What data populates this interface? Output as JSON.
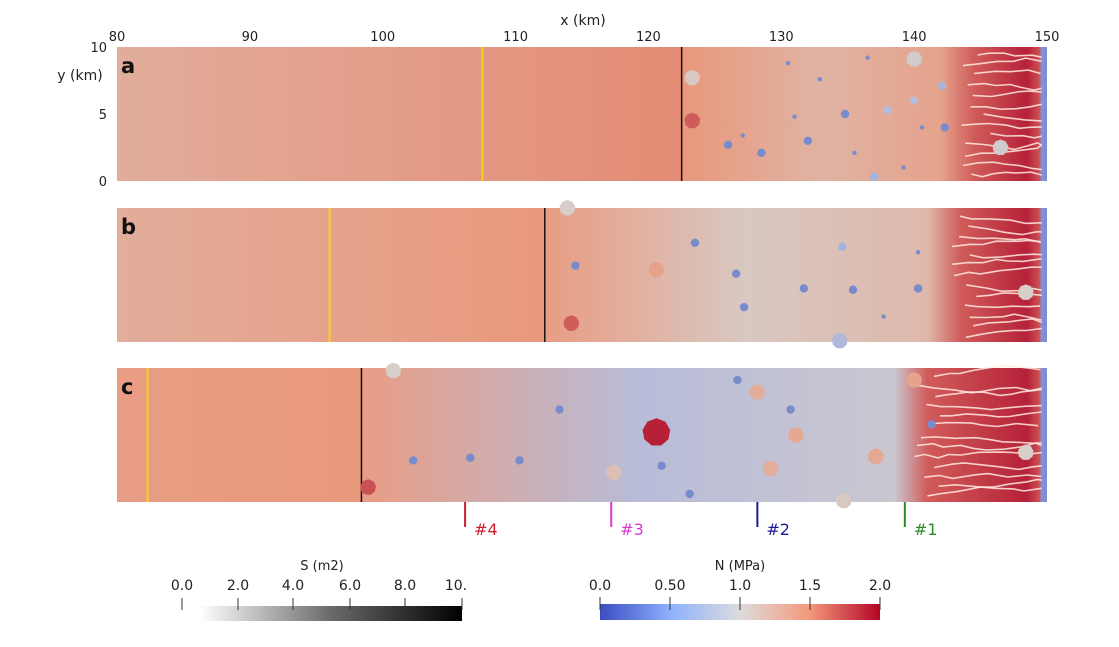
{
  "chart_data": {
    "type": "heatmap",
    "title": "",
    "xlabel": "x (km)",
    "ylabel": "y (km)",
    "xlim": [
      80,
      150
    ],
    "ylim": [
      0,
      10
    ],
    "x_ticks": [
      80,
      90,
      100,
      110,
      120,
      130,
      140,
      150
    ],
    "y_ticks": [
      0,
      5,
      10
    ],
    "grid": false,
    "panels": [
      {
        "label": "a",
        "yellow_front_x": 107.5,
        "black_front_x": 122.5,
        "dense_channel_start_x": 143.5,
        "N_far_left": 1.3,
        "N_behind_front": 1.55,
        "N_mid": 1.25,
        "N_right": 2.0,
        "moulins": [
          {
            "x": 123.3,
            "y": 7.7,
            "S": 0,
            "N": 1.05,
            "size": "large"
          },
          {
            "x": 123.3,
            "y": 4.5,
            "S": 0,
            "N": 1.75,
            "size": "large"
          },
          {
            "x": 126.0,
            "y": 2.7,
            "N": 0.45,
            "size": "medium"
          },
          {
            "x": 127.1,
            "y": 3.4,
            "N": 0.35,
            "size": "small"
          },
          {
            "x": 128.5,
            "y": 2.1,
            "N": 0.4,
            "size": "medium"
          },
          {
            "x": 130.5,
            "y": 8.8,
            "N": 0.45,
            "size": "small"
          },
          {
            "x": 131.0,
            "y": 4.8,
            "N": 0.35,
            "size": "small"
          },
          {
            "x": 132.0,
            "y": 3.0,
            "N": 0.55,
            "size": "medium"
          },
          {
            "x": 132.9,
            "y": 7.6,
            "N": 0.35,
            "size": "small"
          },
          {
            "x": 134.8,
            "y": 5.0,
            "N": 0.4,
            "size": "medium"
          },
          {
            "x": 135.5,
            "y": 2.1,
            "N": 0.45,
            "size": "small"
          },
          {
            "x": 136.5,
            "y": 9.2,
            "N": 0.45,
            "size": "small"
          },
          {
            "x": 137.0,
            "y": 0.3,
            "N": 0.6,
            "size": "medium"
          },
          {
            "x": 138.0,
            "y": 5.3,
            "N": 0.75,
            "size": "medium"
          },
          {
            "x": 139.2,
            "y": 1.0,
            "N": 0.45,
            "size": "small"
          },
          {
            "x": 140.6,
            "y": 4.0,
            "N": 0.45,
            "size": "small"
          },
          {
            "x": 140.0,
            "y": 9.1,
            "N": 0.95,
            "size": "large"
          },
          {
            "x": 140.0,
            "y": 6.0,
            "N": 0.75,
            "size": "medium"
          },
          {
            "x": 142.3,
            "y": 4.0,
            "N": 0.5,
            "size": "medium"
          },
          {
            "x": 142.1,
            "y": 7.1,
            "N": 0.65,
            "size": "medium"
          },
          {
            "x": 146.5,
            "y": 2.5,
            "S": 0,
            "N": 0.95,
            "size": "large"
          }
        ]
      },
      {
        "label": "b",
        "yellow_front_x": 96.0,
        "black_front_x": 112.2,
        "dense_channel_start_x": 142.5,
        "N_far_left": 1.3,
        "N_behind_front": 1.5,
        "N_mid": 1.05,
        "N_right": 2.0,
        "moulins": [
          {
            "x": 113.9,
            "y": 10.0,
            "S": 0,
            "N": 1.0,
            "size": "large"
          },
          {
            "x": 114.2,
            "y": 1.4,
            "S": 0,
            "N": 1.75,
            "size": "large"
          },
          {
            "x": 114.5,
            "y": 5.7,
            "N": 0.5,
            "size": "medium"
          },
          {
            "x": 120.6,
            "y": 5.4,
            "N": 1.4,
            "size": "large"
          },
          {
            "x": 123.5,
            "y": 7.4,
            "N": 0.5,
            "size": "medium"
          },
          {
            "x": 126.6,
            "y": 5.1,
            "N": 0.5,
            "size": "medium"
          },
          {
            "x": 127.2,
            "y": 2.6,
            "N": 0.5,
            "size": "medium"
          },
          {
            "x": 131.7,
            "y": 4.0,
            "N": 0.5,
            "size": "medium"
          },
          {
            "x": 134.6,
            "y": 7.1,
            "N": 0.6,
            "size": "medium"
          },
          {
            "x": 135.4,
            "y": 3.9,
            "N": 0.45,
            "size": "medium"
          },
          {
            "x": 137.7,
            "y": 1.9,
            "N": 0.45,
            "size": "small"
          },
          {
            "x": 140.3,
            "y": 6.7,
            "N": 0.45,
            "size": "small"
          },
          {
            "x": 140.3,
            "y": 4.0,
            "N": 0.45,
            "size": "medium"
          },
          {
            "x": 134.4,
            "y": 0.1,
            "N": 0.7,
            "size": "large"
          },
          {
            "x": 148.4,
            "y": 3.7,
            "S": 0,
            "N": 1.0,
            "size": "large"
          }
        ]
      },
      {
        "label": "c",
        "yellow_front_x": 82.3,
        "black_front_x": 98.4,
        "dense_channel_start_x": 140.0,
        "N_far_left": 1.45,
        "N_behind_front": 1.5,
        "N_mid": 0.75,
        "N_right": 2.0,
        "moulins": [
          {
            "x": 100.8,
            "y": 9.8,
            "S": 0,
            "N": 1.0,
            "size": "large"
          },
          {
            "x": 98.9,
            "y": 1.1,
            "S": 0,
            "N": 1.8,
            "size": "large"
          },
          {
            "x": 120.6,
            "y": 5.2,
            "S": 0,
            "N": 2.0,
            "size": "xlarge"
          },
          {
            "x": 117.4,
            "y": 2.2,
            "N": 1.15,
            "size": "large"
          },
          {
            "x": 128.2,
            "y": 8.2,
            "N": 1.3,
            "size": "large"
          },
          {
            "x": 131.1,
            "y": 5.0,
            "N": 1.35,
            "size": "large"
          },
          {
            "x": 129.2,
            "y": 2.5,
            "N": 1.3,
            "size": "large"
          },
          {
            "x": 137.1,
            "y": 3.4,
            "N": 1.35,
            "size": "large"
          },
          {
            "x": 140.0,
            "y": 9.1,
            "N": 1.4,
            "size": "large"
          },
          {
            "x": 134.7,
            "y": 0.1,
            "N": 1.05,
            "size": "large"
          },
          {
            "x": 102.3,
            "y": 3.1,
            "N": 0.5,
            "size": "medium"
          },
          {
            "x": 106.6,
            "y": 3.3,
            "N": 0.5,
            "size": "medium"
          },
          {
            "x": 110.3,
            "y": 3.1,
            "N": 0.5,
            "size": "medium"
          },
          {
            "x": 113.3,
            "y": 6.9,
            "N": 0.5,
            "size": "medium"
          },
          {
            "x": 121.0,
            "y": 2.7,
            "N": 0.5,
            "size": "medium"
          },
          {
            "x": 123.1,
            "y": 0.6,
            "N": 0.5,
            "size": "medium"
          },
          {
            "x": 126.7,
            "y": 9.1,
            "N": 0.5,
            "size": "medium"
          },
          {
            "x": 130.7,
            "y": 6.9,
            "N": 0.5,
            "size": "medium"
          },
          {
            "x": 141.3,
            "y": 5.8,
            "N": 0.55,
            "size": "medium"
          },
          {
            "x": 148.4,
            "y": 3.7,
            "S": 0,
            "N": 1.0,
            "size": "large"
          }
        ]
      }
    ],
    "profile_markers": [
      {
        "label": "#4",
        "x": 106.2,
        "color": "#c8202a"
      },
      {
        "label": "#3",
        "x": 117.2,
        "color": "#d83ad0"
      },
      {
        "label": "#2",
        "x": 128.2,
        "color": "#1a1a9a"
      },
      {
        "label": "#1",
        "x": 139.3,
        "color": "#2f8a2a"
      }
    ],
    "colorbars": [
      {
        "title": "S (m2)",
        "ticks": [
          "0.0",
          "2.0",
          "4.0",
          "6.0",
          "8.0",
          "10."
        ],
        "range": [
          0,
          10
        ],
        "colormap": "white-to-black"
      },
      {
        "title": "N (MPa)",
        "ticks": [
          "0.0",
          "0.50",
          "1.0",
          "1.5",
          "2.0"
        ],
        "range": [
          0,
          2
        ],
        "colormap": "coolwarm"
      }
    ]
  }
}
